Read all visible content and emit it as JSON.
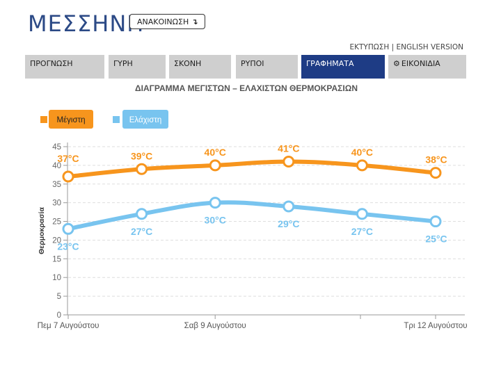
{
  "header": {
    "city": "ΜΕΣΣΗΝΗ",
    "announce_label": "ΑΝΑΚΟΙΝΩΣΗ",
    "announce_icon": "↴"
  },
  "toplinks": {
    "print": "ΕΚΤΥΠΩΣΗ",
    "separator": "|",
    "english": "ENGLISH VERSION"
  },
  "tabs": [
    {
      "label": "ΠΡΟΓΝΩΣΗ",
      "active": false
    },
    {
      "label": "ΓΥΡΗ",
      "active": false
    },
    {
      "label": "ΣΚΟΝΗ",
      "active": false
    },
    {
      "label": "ΡΥΠΟΙ",
      "active": false
    },
    {
      "label": "ΓΡΑΦΗΜΑΤΑ",
      "active": true
    },
    {
      "label": "ΕΙΚΟΝΙΔΙΑ",
      "active": false,
      "icon": "gear-icon"
    }
  ],
  "chart_data": {
    "type": "line",
    "title": "ΔΙΑΓΡΑΜΜΑ ΜΕΓΙΣΤΩΝ – ΕΛΑΧΙΣΤΩΝ ΘΕΡΜΟΚΡΑΣΙΩΝ",
    "ylabel": "Θερμοκρασία",
    "ylim": [
      0,
      45
    ],
    "yticks": [
      0,
      5,
      10,
      15,
      20,
      25,
      30,
      35,
      40,
      45
    ],
    "x_tick_labels": [
      "Πεμ 7 Αυγούστου",
      "Σαβ 9 Αυγούστου",
      "Τρι 12 Αυγούστου"
    ],
    "legend_position": "top-left",
    "grid": true,
    "series": [
      {
        "name": "Μέγιστη",
        "color": "#f7951d",
        "values": [
          37,
          39,
          40,
          41,
          40,
          38
        ],
        "labels": [
          "37°C",
          "39°C",
          "40°C",
          "41°C",
          "40°C",
          "38°C"
        ]
      },
      {
        "name": "Ελάχιστη",
        "color": "#78c4ef",
        "values": [
          23,
          27,
          30,
          29,
          27,
          25
        ],
        "labels": [
          "23°C",
          "27°C",
          "30°C",
          "29°C",
          "27°C",
          "25°C"
        ]
      }
    ]
  }
}
